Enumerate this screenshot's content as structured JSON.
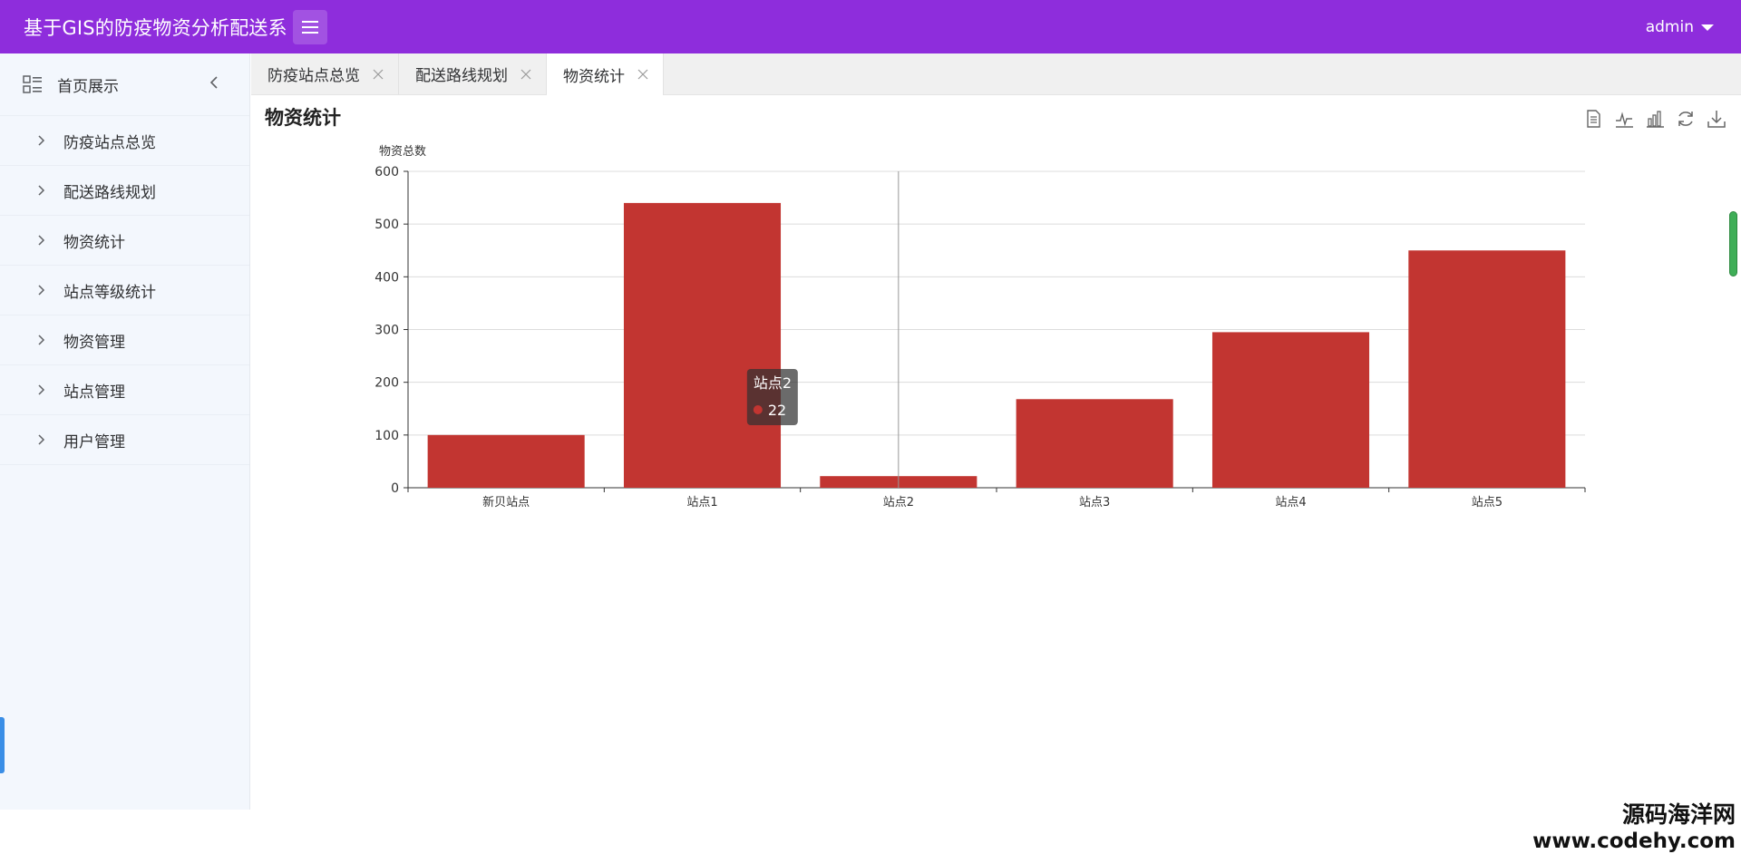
{
  "header": {
    "title": "基于GIS的防疫物资分析配送系",
    "user": "admin"
  },
  "sidebar": {
    "root": "首页展示",
    "items": [
      {
        "label": "防疫站点总览"
      },
      {
        "label": "配送路线规划"
      },
      {
        "label": "物资统计"
      },
      {
        "label": "站点等级统计"
      },
      {
        "label": "物资管理"
      },
      {
        "label": "站点管理"
      },
      {
        "label": "用户管理"
      }
    ]
  },
  "tabs": [
    {
      "label": "防疫站点总览",
      "active": false
    },
    {
      "label": "配送路线规划",
      "active": false
    },
    {
      "label": "物资统计",
      "active": true
    }
  ],
  "main": {
    "title": "物资统计"
  },
  "toolbox": [
    "data-view-icon",
    "line-chart-icon",
    "bar-chart-icon",
    "refresh-icon",
    "download-icon"
  ],
  "chart_data": {
    "type": "bar",
    "ylabel": "物资总数",
    "xlabel": "",
    "categories": [
      "新贝站点",
      "站点1",
      "站点2",
      "站点3",
      "站点4",
      "站点5"
    ],
    "values": [
      100,
      540,
      22,
      168,
      295,
      450
    ],
    "ylim": [
      0,
      600
    ],
    "yticks": [
      0,
      100,
      200,
      300,
      400,
      500,
      600
    ],
    "grid": true,
    "color": "#c23531",
    "tooltip": {
      "category": "站点2",
      "value": "22"
    }
  },
  "watermark": {
    "line1": "源码海洋网",
    "line2": "www.codehy.com"
  }
}
